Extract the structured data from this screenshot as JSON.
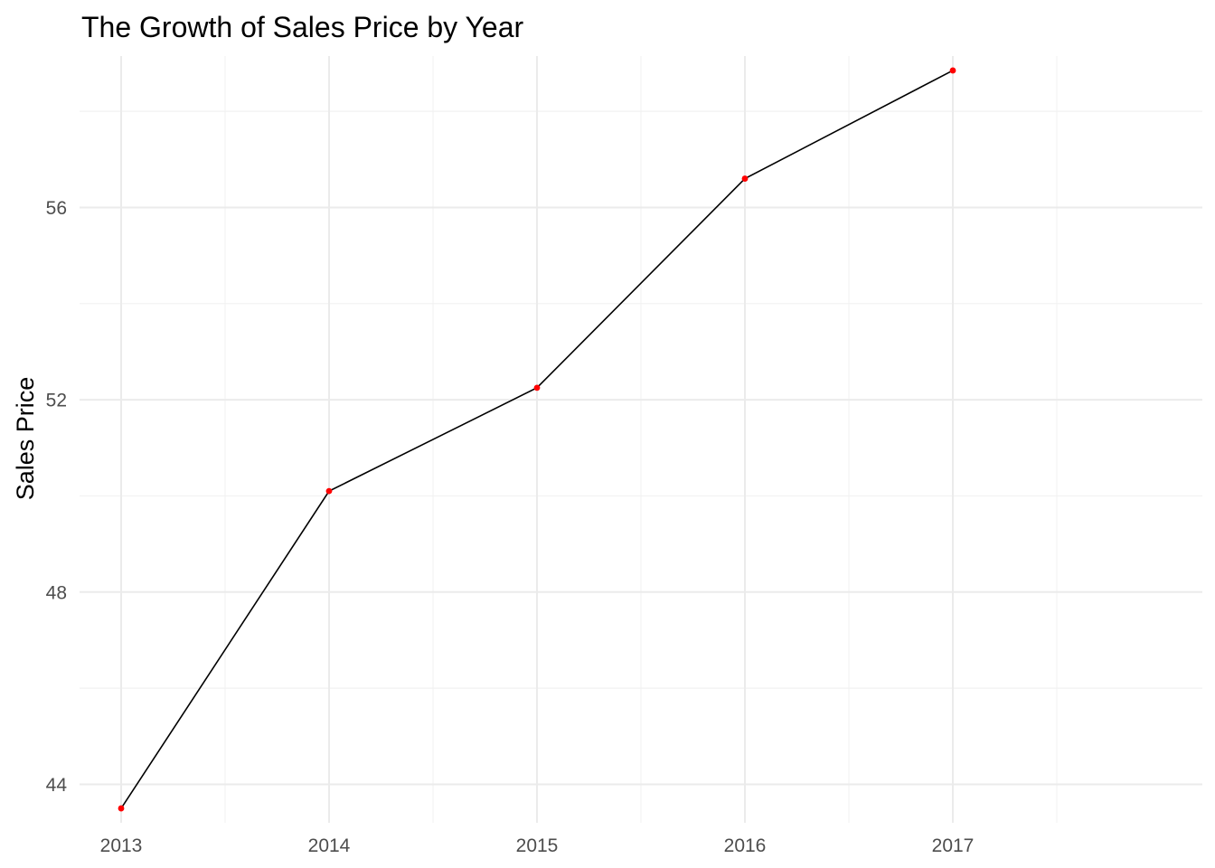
{
  "chart_data": {
    "type": "line",
    "title": "The Growth of Sales Price by Year",
    "xlabel": "",
    "ylabel": "Sales Price",
    "x": [
      2013,
      2014,
      2015,
      2016,
      2017
    ],
    "series": [
      {
        "values": [
          43.5,
          50.1,
          52.25,
          56.6,
          58.85
        ]
      }
    ],
    "x_ticks": [
      "2013",
      "2014",
      "2015",
      "2016",
      "2017"
    ],
    "y_ticks": [
      "44",
      "48",
      "52",
      "56"
    ],
    "xlim": [
      2012.8,
      2018.2
    ],
    "ylim": [
      43.2,
      59.15
    ],
    "grid": true,
    "legend": "none",
    "line_color": "#000000",
    "point_color": "#ff0000"
  }
}
